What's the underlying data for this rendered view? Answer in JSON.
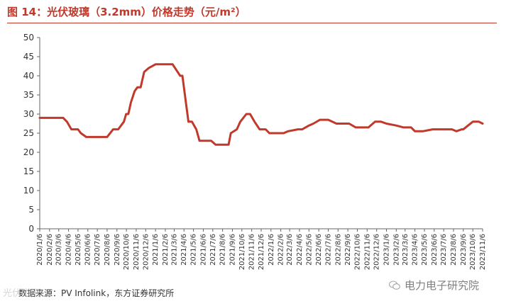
{
  "title": "图 14：光伏玻璃（3.2mm）价格走势（元/m²）",
  "source": "数据来源：PV Infolink，东方证券研究所",
  "watermark_left": "光伏资讯",
  "watermark_right": "电力电子研究院",
  "colors": {
    "line": "#c0392b",
    "title": "#c0392b",
    "axis": "#666666"
  },
  "chart_data": {
    "type": "line",
    "title": "",
    "xlabel": "",
    "ylabel": "",
    "ylim": [
      0,
      50
    ],
    "yticks": [
      0,
      5,
      10,
      15,
      20,
      25,
      30,
      35,
      40,
      45,
      50
    ],
    "grid": false,
    "legend": "none",
    "xtick_labels": [
      "2020/1/6",
      "2020/2/6",
      "2020/3/6",
      "2020/4/6",
      "2020/5/6",
      "2020/6/6",
      "2020/7/6",
      "2020/8/6",
      "2020/9/6",
      "2020/10/6",
      "2020/11/6",
      "2020/12/6",
      "2021/1/6",
      "2021/2/6",
      "2021/3/6",
      "2021/4/6",
      "2021/5/6",
      "2021/6/6",
      "2021/7/6",
      "2021/8/6",
      "2021/9/6",
      "2021/10/6",
      "2021/11/6",
      "2021/12/6",
      "2022/1/6",
      "2022/2/6",
      "2022/3/6",
      "2022/4/6",
      "2022/5/6",
      "2022/6/6",
      "2022/7/6",
      "2022/8/6",
      "2022/9/6",
      "2022/10/6",
      "2022/11/6",
      "2022/12/6",
      "2023/1/6",
      "2023/2/6",
      "2023/3/6",
      "2023/4/6",
      "2023/5/6",
      "2023/6/6",
      "2023/7/6",
      "2023/8/6",
      "2023/9/6",
      "2023/10/6",
      "2023/11/6"
    ],
    "series": [
      {
        "x": [
          "2020/1/6",
          "2020/3/20",
          "2020/4/1",
          "2020/4/15",
          "2020/5/6",
          "2020/5/15",
          "2020/6/1",
          "2020/7/1",
          "2020/7/27",
          "2020/8/6",
          "2020/8/25",
          "2020/9/10",
          "2020/9/28",
          "2020/10/5",
          "2020/10/12",
          "2020/10/20",
          "2020/11/1",
          "2020/11/10",
          "2020/11/20",
          "2020/12/1",
          "2020/12/15",
          "2021/1/6",
          "2021/2/1",
          "2021/2/20",
          "2021/3/1",
          "2021/3/25",
          "2021/4/1",
          "2021/4/20",
          "2021/5/1",
          "2021/5/15",
          "2021/5/25",
          "2021/6/15",
          "2021/7/1",
          "2021/7/15",
          "2021/8/15",
          "2021/8/25",
          "2021/9/1",
          "2021/9/20",
          "2021/10/1",
          "2021/10/20",
          "2021/11/1",
          "2021/11/15",
          "2021/12/1",
          "2021/12/20",
          "2022/1/1",
          "2022/2/15",
          "2022/3/1",
          "2022/4/1",
          "2022/4/15",
          "2022/5/6",
          "2022/5/20",
          "2022/6/10",
          "2022/7/1",
          "2022/7/6",
          "2022/8/1",
          "2022/9/1",
          "2022/9/10",
          "2022/10/1",
          "2022/11/1",
          "2022/11/10",
          "2022/12/1",
          "2022/12/20",
          "2023/1/6",
          "2023/2/6",
          "2023/3/1",
          "2023/3/6",
          "2023/3/25",
          "2023/4/6",
          "2023/5/1",
          "2023/6/1",
          "2023/7/1",
          "2023/7/15",
          "2023/8/1",
          "2023/8/15",
          "2023/9/1",
          "2023/9/6",
          "2023/10/6",
          "2023/10/25",
          "2023/11/6"
        ],
        "y": [
          29,
          29,
          28,
          26,
          26,
          25,
          24,
          24,
          24,
          24,
          26,
          26,
          28,
          30,
          30,
          33,
          36,
          37,
          37,
          41,
          42,
          43,
          43,
          43,
          43,
          40,
          40,
          28,
          28,
          26,
          23,
          23,
          23,
          22,
          22,
          22,
          25,
          26,
          28,
          30,
          30,
          28,
          26,
          26,
          25,
          25,
          25.5,
          26,
          26,
          27,
          27.5,
          28.5,
          28.5,
          28.5,
          27.5,
          27.5,
          27.5,
          26.5,
          26.5,
          26.5,
          28,
          28,
          27.5,
          27,
          26.5,
          26.5,
          26.5,
          25.5,
          25.5,
          26,
          26,
          26,
          26,
          25.5,
          26,
          26,
          28,
          28,
          27.5
        ]
      }
    ]
  }
}
